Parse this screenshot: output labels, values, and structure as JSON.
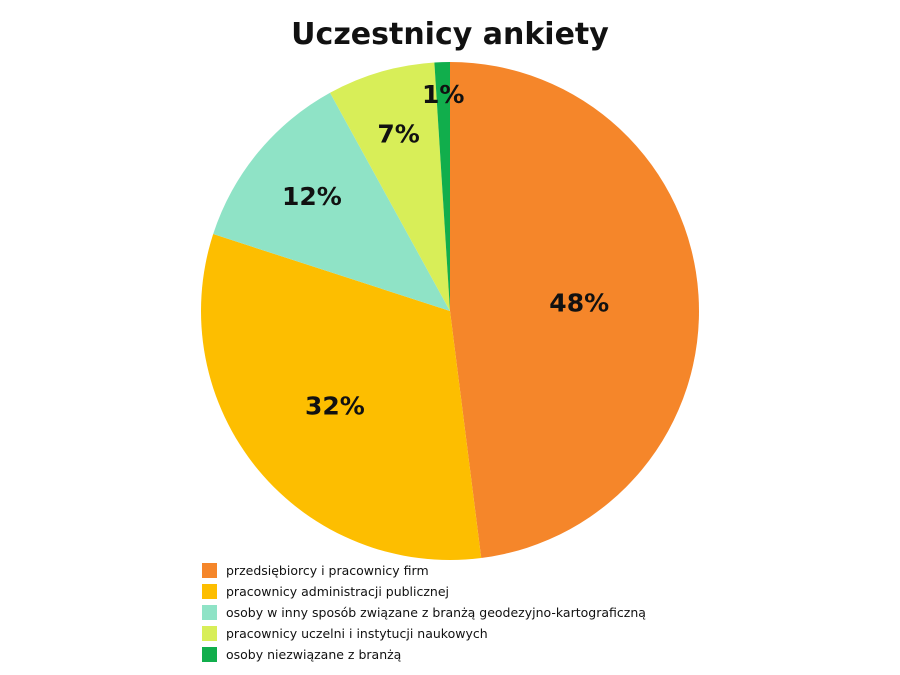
{
  "chart_data": {
    "type": "pie",
    "title": "Uczestnicy ankiety",
    "legend_position": "bottom",
    "slices": [
      {
        "name": "przedsiębiorcy i pracownicy firm",
        "value": 48,
        "label": "48%",
        "color": "#F5862A"
      },
      {
        "name": "pracownicy administracji publicznej",
        "value": 32,
        "label": "32%",
        "color": "#FDBE00"
      },
      {
        "name": "osoby w inny sposób związane z branżą geodezyjno-kartograficzną",
        "value": 12,
        "label": "12%",
        "color": "#8FE3C6"
      },
      {
        "name": "pracownicy uczelni i instytucji naukowych",
        "value": 7,
        "label": "7%",
        "color": "#D8EE58"
      },
      {
        "name": "osoby niezwiązane z branżą",
        "value": 1,
        "label": "1%",
        "color": "#11AE4C"
      }
    ]
  }
}
